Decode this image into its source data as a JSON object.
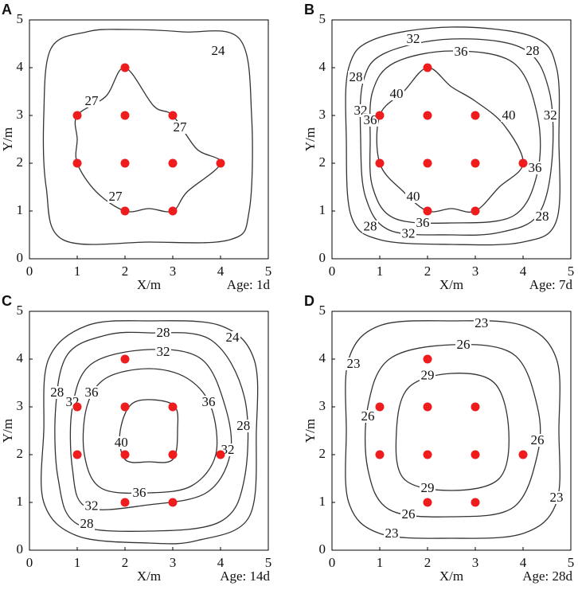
{
  "chart_data": [
    {
      "type": "contour",
      "panel": "A",
      "xlabel": "X/m",
      "ylabel": "Y/m",
      "annotation": "Age: 1d",
      "xlim": [
        0,
        5
      ],
      "ylim": [
        0,
        5
      ],
      "xticks": [
        0,
        1,
        2,
        3,
        4,
        5
      ],
      "yticks": [
        0,
        1,
        2,
        3,
        4,
        5
      ],
      "points": {
        "color": "#ee1c1c",
        "x": [
          2,
          1,
          2,
          3,
          1,
          2,
          3,
          4,
          2,
          3
        ],
        "y": [
          4,
          3,
          3,
          3,
          2,
          2,
          2,
          2,
          1,
          1
        ]
      },
      "contours": [
        {
          "level": 24,
          "color": "#333333",
          "x": [
            2,
            3.2,
            4.4,
            4.65,
            4.6,
            4.2,
            2.5,
            0.7,
            0.35,
            0.3,
            0.45,
            1.2
          ],
          "y": [
            4.8,
            4.75,
            4.6,
            3,
            1,
            0.4,
            0.35,
            0.4,
            1.5,
            3,
            4.4,
            4.75
          ],
          "labels": [
            {
              "x": 3.95,
              "y": 4.35
            }
          ]
        },
        {
          "level": 27,
          "color": "#333333",
          "x": [
            2,
            2.6,
            3,
            3.5,
            4,
            3.3,
            3,
            2.5,
            2,
            1.4,
            1,
            1,
            1,
            1.6
          ],
          "y": [
            4,
            3.2,
            3,
            2.3,
            2,
            1.4,
            1,
            1.05,
            1,
            1.4,
            2,
            2.5,
            3,
            3.4
          ],
          "labels": [
            {
              "x": 1.3,
              "y": 3.3
            },
            {
              "x": 3.15,
              "y": 2.75
            },
            {
              "x": 1.8,
              "y": 1.3
            }
          ]
        }
      ]
    },
    {
      "type": "contour",
      "panel": "B",
      "xlabel": "X/m",
      "ylabel": "Y/m",
      "annotation": "Age: 7d",
      "xlim": [
        0,
        5
      ],
      "ylim": [
        0,
        5
      ],
      "xticks": [
        0,
        1,
        2,
        3,
        4,
        5
      ],
      "yticks": [
        0,
        1,
        2,
        3,
        4,
        5
      ],
      "points": {
        "color": "#ee1c1c",
        "x": [
          2,
          1,
          2,
          3,
          1,
          2,
          3,
          4,
          2,
          3
        ],
        "y": [
          4,
          3,
          3,
          3,
          2,
          2,
          2,
          2,
          1,
          1
        ]
      },
      "contours": [
        {
          "level": 28,
          "color": "#333333",
          "x": [
            2.5,
            4.2,
            4.7,
            4.75,
            4.7,
            4,
            2.5,
            1,
            0.4,
            0.3,
            0.35,
            0.9
          ],
          "y": [
            4.85,
            4.65,
            4,
            2.5,
            0.8,
            0.35,
            0.3,
            0.4,
            0.9,
            2.5,
            4,
            4.6
          ],
          "labels": [
            {
              "x": 0.5,
              "y": 3.8
            },
            {
              "x": 4.2,
              "y": 4.35
            },
            {
              "x": 0.8,
              "y": 0.67
            },
            {
              "x": 4.4,
              "y": 0.88
            }
          ]
        },
        {
          "level": 32,
          "color": "#333333",
          "x": [
            2.5,
            4,
            4.55,
            4.6,
            4.3,
            3.5,
            2.5,
            1.2,
            0.7,
            0.6,
            0.65,
            1.1
          ],
          "y": [
            4.6,
            4.4,
            3.5,
            2,
            0.9,
            0.55,
            0.5,
            0.6,
            1.3,
            2.5,
            3.7,
            4.3
          ],
          "labels": [
            {
              "x": 1.7,
              "y": 4.6
            },
            {
              "x": 0.6,
              "y": 3.1
            },
            {
              "x": 4.57,
              "y": 3.0
            },
            {
              "x": 1.6,
              "y": 0.52
            }
          ]
        },
        {
          "level": 36,
          "color": "#333333",
          "x": [
            2.5,
            3.8,
            4.3,
            4.3,
            3.8,
            2.5,
            1.3,
            0.85,
            0.8,
            0.85,
            1.3
          ],
          "y": [
            4.35,
            4.1,
            3,
            1.8,
            0.9,
            0.75,
            0.85,
            1.5,
            2.5,
            3.5,
            4.1
          ],
          "labels": [
            {
              "x": 2.7,
              "y": 4.33
            },
            {
              "x": 0.8,
              "y": 2.9
            },
            {
              "x": 4.25,
              "y": 1.9
            },
            {
              "x": 1.9,
              "y": 0.75
            }
          ]
        },
        {
          "level": 40,
          "color": "#333333",
          "x": [
            2,
            2.5,
            3,
            3.6,
            4,
            3.5,
            3,
            2.5,
            2,
            1.5,
            1,
            1,
            1.5
          ],
          "y": [
            4,
            3.6,
            3.3,
            2.8,
            2,
            1.5,
            1,
            1.05,
            1,
            1.4,
            2,
            3,
            3.5
          ],
          "labels": [
            {
              "x": 1.35,
              "y": 3.45
            },
            {
              "x": 3.7,
              "y": 3.0
            },
            {
              "x": 1.7,
              "y": 1.3
            }
          ]
        }
      ]
    },
    {
      "type": "contour",
      "panel": "C",
      "xlabel": "X/m",
      "ylabel": "Y/m",
      "annotation": "Age: 14d",
      "xlim": [
        0,
        5
      ],
      "ylim": [
        0,
        5
      ],
      "xticks": [
        0,
        1,
        2,
        3,
        4,
        5
      ],
      "yticks": [
        0,
        1,
        2,
        3,
        4,
        5
      ],
      "points": {
        "color": "#ee1c1c",
        "x": [
          2,
          1,
          2,
          3,
          1,
          2,
          3,
          4,
          2,
          3
        ],
        "y": [
          4,
          3,
          3,
          3,
          2,
          2,
          2,
          2,
          1,
          1
        ]
      },
      "contours": [
        {
          "level": 24,
          "color": "#333333",
          "x": [
            2.5,
            4,
            4.7,
            4.75,
            4.6,
            3.5,
            2.5,
            1,
            0.3,
            0.3,
            0.4,
            1.2
          ],
          "y": [
            4.8,
            4.7,
            4,
            2.5,
            0.7,
            0.2,
            0.15,
            0.3,
            1,
            2.5,
            4,
            4.7
          ],
          "labels": [
            {
              "x": 4.25,
              "y": 4.45
            }
          ]
        },
        {
          "level": 28,
          "color": "#333333",
          "x": [
            2.5,
            3.8,
            4.5,
            4.5,
            4,
            2.5,
            1,
            0.6,
            0.55,
            0.8,
            1.6
          ],
          "y": [
            4.55,
            4.4,
            3.2,
            1.5,
            0.6,
            0.4,
            0.55,
            1.5,
            3,
            4.1,
            4.5
          ],
          "labels": [
            {
              "x": 2.8,
              "y": 4.55
            },
            {
              "x": 0.58,
              "y": 3.3
            },
            {
              "x": 4.48,
              "y": 2.6
            },
            {
              "x": 1.2,
              "y": 0.55
            }
          ]
        },
        {
          "level": 32,
          "color": "#333333",
          "x": [
            2.5,
            3.6,
            4.1,
            4.2,
            3.7,
            2.5,
            1.2,
            0.9,
            0.9,
            1.3
          ],
          "y": [
            4.2,
            4,
            3,
            2,
            1.2,
            0.95,
            0.9,
            1.7,
            3,
            3.9
          ],
          "labels": [
            {
              "x": 2.8,
              "y": 4.15
            },
            {
              "x": 0.9,
              "y": 3.1
            },
            {
              "x": 4.15,
              "y": 2.1
            },
            {
              "x": 1.3,
              "y": 0.92
            }
          ]
        },
        {
          "level": 36,
          "color": "#333333",
          "x": [
            2.5,
            3.3,
            3.8,
            3.9,
            3.4,
            2.5,
            1.5,
            1.15,
            1.2,
            1.6
          ],
          "y": [
            3.8,
            3.6,
            3,
            2,
            1.35,
            1.2,
            1.3,
            2,
            3,
            3.6
          ],
          "labels": [
            {
              "x": 1.3,
              "y": 3.3
            },
            {
              "x": 3.75,
              "y": 3.1
            },
            {
              "x": 2.3,
              "y": 1.2
            }
          ]
        },
        {
          "level": 40,
          "color": "#333333",
          "x": [
            2.2,
            3,
            3.1,
            3,
            2.5,
            2,
            1.9
          ],
          "y": [
            3.1,
            3.05,
            2.5,
            1.9,
            1.85,
            1.9,
            2.5
          ],
          "labels": [
            {
              "x": 1.92,
              "y": 2.25
            }
          ]
        }
      ]
    },
    {
      "type": "contour",
      "panel": "D",
      "xlabel": "X/m",
      "ylabel": "Y/m",
      "annotation": "Age: 28d",
      "xlim": [
        0,
        5
      ],
      "ylim": [
        0,
        5
      ],
      "xticks": [
        0,
        1,
        2,
        3,
        4,
        5
      ],
      "yticks": [
        0,
        1,
        2,
        3,
        4,
        5
      ],
      "points": {
        "color": "#ee1c1c",
        "x": [
          2,
          1,
          2,
          3,
          1,
          2,
          3,
          4,
          2,
          3
        ],
        "y": [
          4,
          3,
          3,
          3,
          2,
          2,
          2,
          2,
          1,
          1
        ]
      },
      "contours": [
        {
          "level": 23,
          "color": "#333333",
          "x": [
            2.5,
            4,
            4.7,
            4.75,
            4.7,
            4,
            2.5,
            1,
            0.35,
            0.3,
            0.35,
            1
          ],
          "y": [
            4.8,
            4.7,
            4,
            2.5,
            1,
            0.35,
            0.25,
            0.35,
            1,
            2.5,
            4,
            4.7
          ],
          "labels": [
            {
              "x": 3.13,
              "y": 4.75
            },
            {
              "x": 0.45,
              "y": 3.9
            },
            {
              "x": 4.7,
              "y": 1.1
            },
            {
              "x": 1.25,
              "y": 0.35
            }
          ]
        },
        {
          "level": 26,
          "color": "#333333",
          "x": [
            2.5,
            3.8,
            4.3,
            4.3,
            3.8,
            2.5,
            1.2,
            0.75,
            0.75,
            1.2
          ],
          "y": [
            4.3,
            4.1,
            3,
            2,
            0.9,
            0.7,
            0.85,
            1.7,
            3,
            4
          ],
          "labels": [
            {
              "x": 2.75,
              "y": 4.3
            },
            {
              "x": 0.75,
              "y": 2.8
            },
            {
              "x": 4.3,
              "y": 2.3
            },
            {
              "x": 1.6,
              "y": 0.75
            }
          ]
        },
        {
          "level": 29,
          "color": "#333333",
          "x": [
            2.5,
            3.4,
            3.7,
            3.5,
            2.5,
            1.5,
            1.35,
            1.6
          ],
          "y": [
            3.7,
            3.5,
            2.5,
            1.5,
            1.25,
            1.5,
            2.5,
            3.4
          ],
          "labels": [
            {
              "x": 2.0,
              "y": 3.66
            },
            {
              "x": 2.0,
              "y": 1.3
            }
          ]
        }
      ]
    }
  ]
}
